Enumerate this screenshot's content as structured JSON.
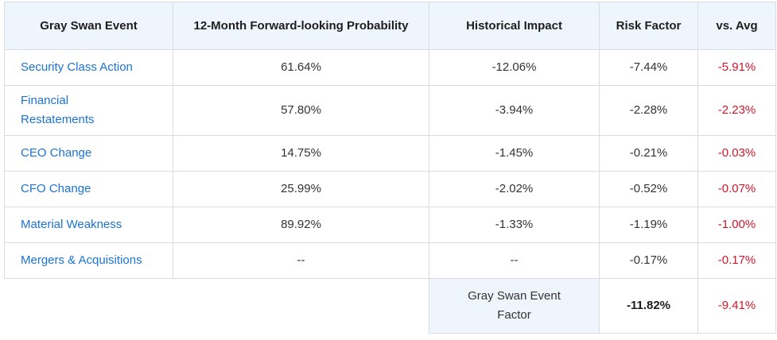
{
  "headers": [
    "Gray Swan Event",
    "12-Month Forward-looking Probability",
    "Historical Impact",
    "Risk Factor",
    "vs. Avg"
  ],
  "rows": [
    {
      "event": "Security Class Action",
      "probability": "61.64%",
      "impact": "-12.06%",
      "risk": "-7.44%",
      "vs_avg": "-5.91%"
    },
    {
      "event": "Financial Restatements",
      "probability": "57.80%",
      "impact": "-3.94%",
      "risk": "-2.28%",
      "vs_avg": "-2.23%"
    },
    {
      "event": "CEO Change",
      "probability": "14.75%",
      "impact": "-1.45%",
      "risk": "-0.21%",
      "vs_avg": "-0.03%"
    },
    {
      "event": "CFO Change",
      "probability": "25.99%",
      "impact": "-2.02%",
      "risk": "-0.52%",
      "vs_avg": "-0.07%"
    },
    {
      "event": "Material Weakness",
      "probability": "89.92%",
      "impact": "-1.33%",
      "risk": "-1.19%",
      "vs_avg": "-1.00%"
    },
    {
      "event": "Mergers & Acquisitions",
      "probability": "--",
      "impact": "--",
      "risk": "-0.17%",
      "vs_avg": "-0.17%"
    }
  ],
  "footer": {
    "label": "Gray Swan Event Factor",
    "risk": "-11.82%",
    "vs_avg": "-9.41%"
  },
  "colors": {
    "link": "#1a73d6",
    "negative": "#d0162b",
    "header_bg": "#eef5fc",
    "border": "#d9dde3"
  }
}
